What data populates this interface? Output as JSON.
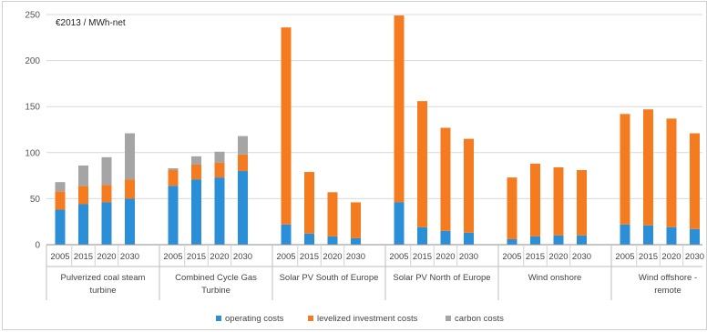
{
  "chart_data": {
    "type": "bar",
    "stacked": true,
    "unit_label": "€2013 / MWh-net",
    "ylim": [
      0,
      250
    ],
    "yticks": [
      0,
      50,
      100,
      150,
      200,
      250
    ],
    "grid": true,
    "legend_position": "bottom",
    "groups": [
      {
        "name_lines": [
          "Pulverized coal steam",
          "turbine"
        ],
        "years": [
          "2005",
          "2015",
          "2020",
          "2030"
        ]
      },
      {
        "name_lines": [
          "Combined Cycle Gas",
          "Turbine"
        ],
        "years": [
          "2005",
          "2015",
          "2020",
          "2030"
        ]
      },
      {
        "name_lines": [
          "Solar PV South of Europe"
        ],
        "years": [
          "2005",
          "2015",
          "2020",
          "2030"
        ]
      },
      {
        "name_lines": [
          "Solar PV North of Europe"
        ],
        "years": [
          "2005",
          "2015",
          "2020",
          "2030"
        ]
      },
      {
        "name_lines": [
          "Wind onshore"
        ],
        "years": [
          "2005",
          "2015",
          "2020",
          "2030"
        ]
      },
      {
        "name_lines": [
          "Wind offshore -",
          "remote"
        ],
        "years": [
          "2005",
          "2015",
          "2020",
          "2030"
        ]
      }
    ],
    "series": [
      {
        "name": "operating costs",
        "color": "#2a8fd6",
        "values": [
          38,
          44,
          46,
          50,
          64,
          71,
          73,
          80,
          22,
          12,
          9,
          7,
          46,
          19,
          15,
          13,
          6,
          9,
          10,
          10,
          22,
          21,
          19,
          17
        ]
      },
      {
        "name": "levelized investment costs",
        "color": "#f47b20",
        "values": [
          20,
          20,
          19,
          21,
          17,
          16,
          16,
          18,
          214,
          67,
          48,
          39,
          203,
          137,
          112,
          102,
          67,
          79,
          74,
          71,
          120,
          126,
          118,
          104
        ]
      },
      {
        "name": "carbon costs",
        "color": "#a5a5a5",
        "values": [
          10,
          22,
          30,
          50,
          2,
          9,
          12,
          20,
          0,
          0,
          0,
          0,
          0,
          0,
          0,
          0,
          0,
          0,
          0,
          0,
          0,
          0,
          0,
          0
        ]
      }
    ]
  }
}
